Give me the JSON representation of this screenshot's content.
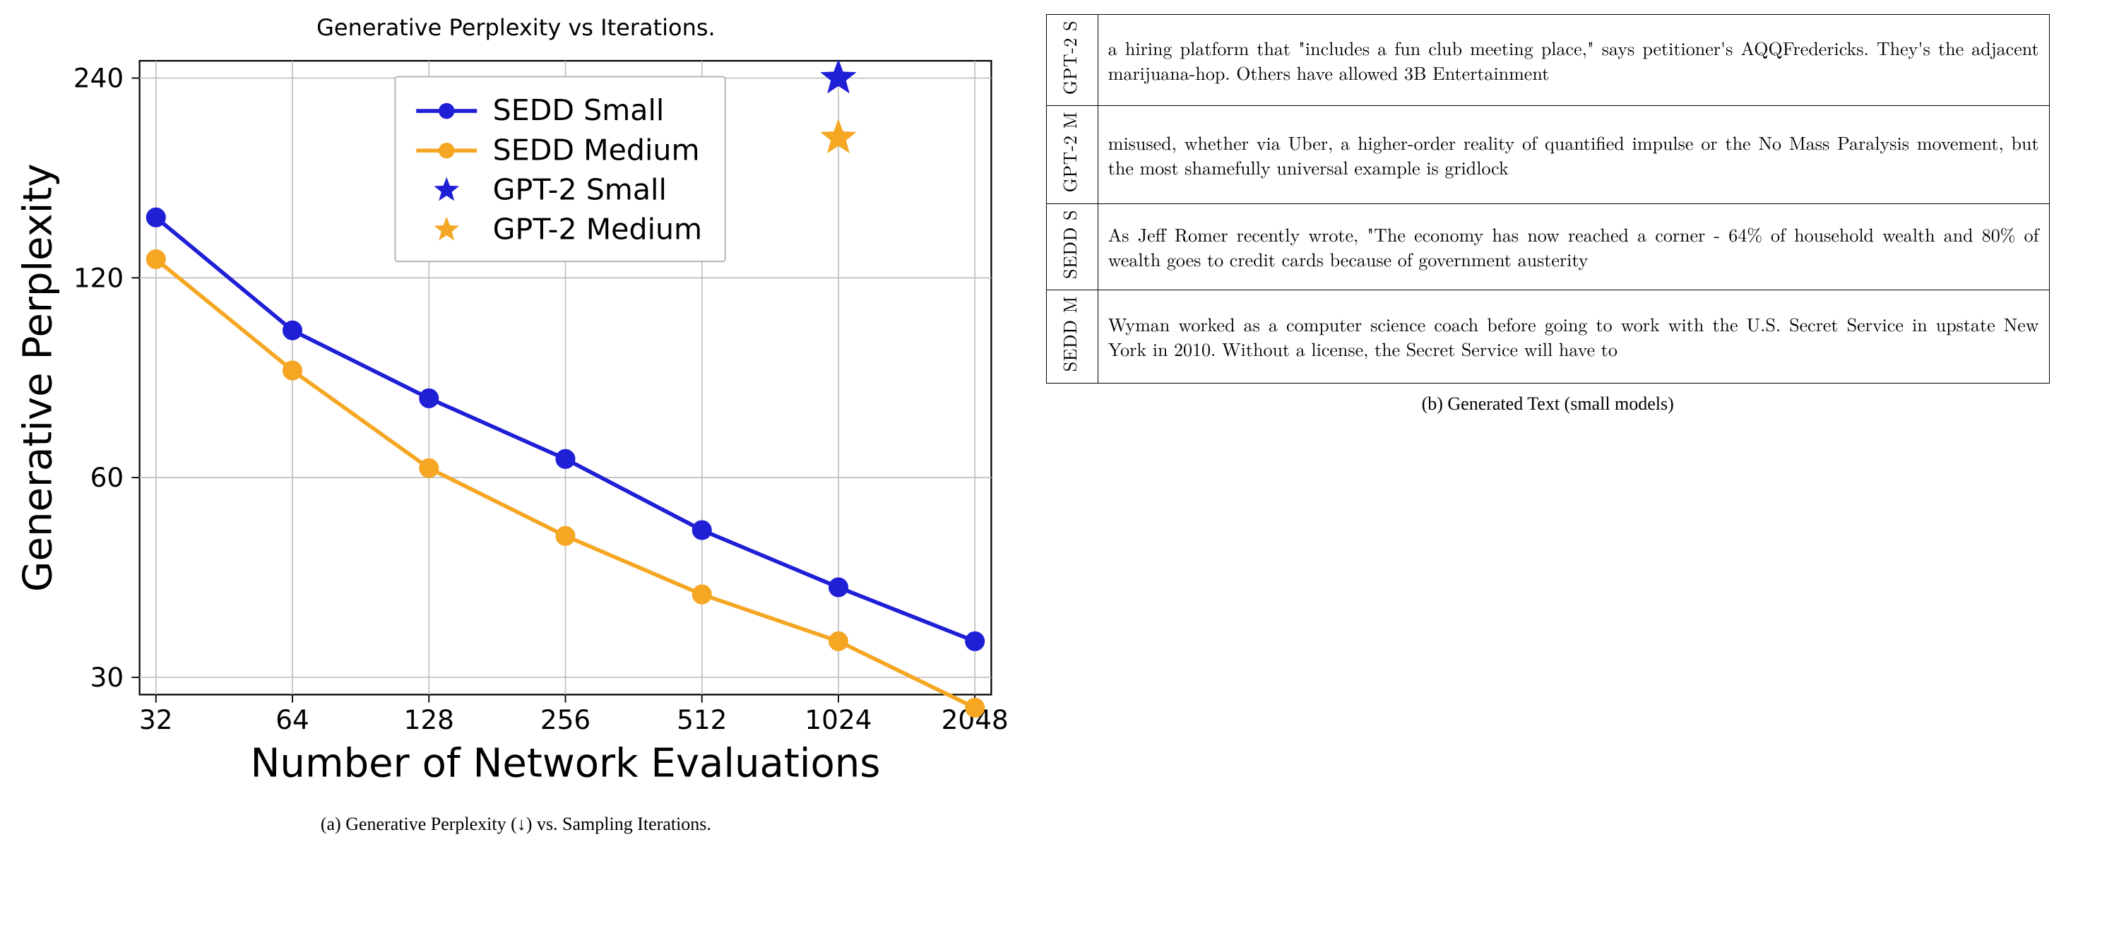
{
  "chart": {
    "type": "line-scatter",
    "title": "Generative Perplexity vs Iterations.",
    "xlabel": "Number of Network Evaluations",
    "ylabel": "Generative Perplexity",
    "xscale": "log2",
    "yscale": "log",
    "xticks": [
      32,
      64,
      128,
      256,
      512,
      1024,
      2048
    ],
    "yticks": [
      30,
      60,
      120,
      240
    ],
    "background_color": "#ffffff",
    "grid_color": "#bfbfbf",
    "axis_color": "#000000",
    "series": {
      "sedd_small": {
        "label": "SEDD Small",
        "color": "#1f1fd6",
        "marker": "circle",
        "line": true,
        "linewidth": 3,
        "markersize": 7,
        "x": [
          32,
          64,
          128,
          256,
          512,
          1024,
          2048
        ],
        "y": [
          148,
          100,
          79,
          64,
          50,
          41,
          34
        ]
      },
      "sedd_medium": {
        "label": "SEDD Medium",
        "color": "#f5a623",
        "marker": "circle",
        "line": true,
        "linewidth": 3,
        "markersize": 7,
        "x": [
          32,
          64,
          128,
          256,
          512,
          1024,
          2048
        ],
        "y": [
          128,
          87,
          62,
          49,
          40,
          34,
          27
        ]
      },
      "gpt2_small": {
        "label": "GPT-2 Small",
        "color": "#1f1fd6",
        "marker": "star",
        "line": false,
        "markersize": 13,
        "x": [
          1024
        ],
        "y": [
          240
        ]
      },
      "gpt2_medium": {
        "label": "GPT-2 Medium",
        "color": "#f5a623",
        "marker": "star",
        "line": false,
        "markersize": 13,
        "x": [
          1024
        ],
        "y": [
          195
        ]
      }
    },
    "legend_position": "upper-center",
    "title_fontsize": 32,
    "label_fontsize": 30,
    "tick_fontsize": 20,
    "legend_fontsize": 22
  },
  "caption_a": "(a) Generative Perplexity (↓) vs. Sampling Iterations.",
  "caption_b": "(b) Generated Text (small models)",
  "table": {
    "rows": [
      {
        "label": "GPT-2 S",
        "text": "a hiring platform that \"includes a fun club meeting place,\" says petitioner's AQQFredericks. They's the adjacent marijuana-hop. Others have allowed 3B Entertainment"
      },
      {
        "label": "GPT-2 M",
        "text": "misused, whether via Uber, a higher-order reality of quantified impulse or the No Mass Paralysis movement, but the most shamefully universal example is gridlock"
      },
      {
        "label": "SEDD S",
        "text": "As Jeff Romer recently wrote, \"The economy has now reached a corner - 64% of household wealth and 80% of wealth goes to credit cards because of government austerity"
      },
      {
        "label": "SEDD M",
        "text": "Wyman worked as a computer science coach before going to work with the U.S. Secret Service in upstate New York in 2010. Without a license, the Secret Service will have to"
      }
    ]
  }
}
